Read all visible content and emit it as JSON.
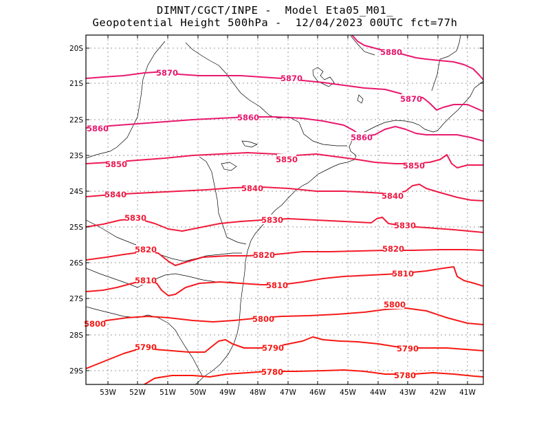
{
  "header": {
    "line1": "DIMNT/CGCT/INPE -  Model Eta05_M01_",
    "line2": "Geopotential Height 500hPa -  12/04/2023 00UTC fct=77h"
  },
  "axes": {
    "lon_labels": [
      "53W",
      "52W",
      "51W",
      "50W",
      "49W",
      "48W",
      "47W",
      "46W",
      "45W",
      "44W",
      "43W",
      "42W",
      "41W"
    ],
    "lat_labels": [
      "20S",
      "21S",
      "22S",
      "23S",
      "24S",
      "25S",
      "26S",
      "27S",
      "28S",
      "29S"
    ]
  },
  "contours": [
    {
      "value": "5880",
      "label": "5880",
      "color": "#e8186e"
    },
    {
      "value": "5870",
      "label": "5870",
      "color": "#e8186e"
    },
    {
      "value": "5860",
      "label": "5860",
      "color": "#e8186e"
    },
    {
      "value": "5850",
      "label": "5850",
      "color": "#ec1a55"
    },
    {
      "value": "5840",
      "label": "5840",
      "color": "#ee1a45"
    },
    {
      "value": "5830",
      "label": "5830",
      "color": "#f01a38"
    },
    {
      "value": "5820",
      "label": "5820",
      "color": "#f21a2a"
    },
    {
      "value": "5810",
      "label": "5810",
      "color": "#f41a20"
    },
    {
      "value": "5800",
      "label": "5800",
      "color": "#f51a18"
    },
    {
      "value": "5790",
      "label": "5790",
      "color": "#f61812"
    },
    {
      "value": "5780",
      "label": "5780",
      "color": "#f8160c"
    }
  ],
  "colors": {
    "frame": "#000000",
    "grid": "#9a9a9a",
    "coast": "#000000"
  }
}
